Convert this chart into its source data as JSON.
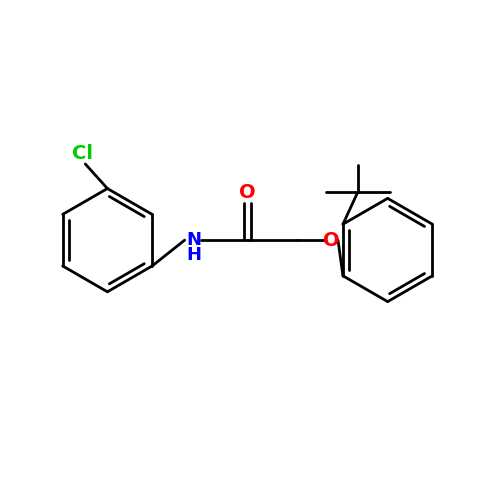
{
  "bg_color": "#ffffff",
  "bond_color": "#000000",
  "cl_color": "#00cc00",
  "nh_color": "#0000ff",
  "o_color": "#ff0000",
  "line_width": 2.0,
  "font_size": 13,
  "xlim": [
    0,
    10
  ],
  "ylim": [
    0,
    10
  ]
}
